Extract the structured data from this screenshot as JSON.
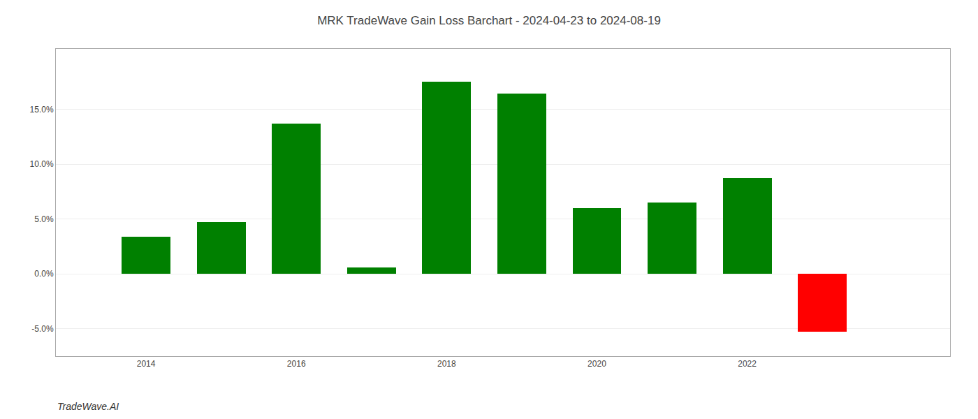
{
  "chart_data": {
    "type": "bar",
    "title": "MRK TradeWave Gain Loss Barchart - 2024-04-23 to 2024-08-19",
    "annotations": [
      "TradeWave.AI"
    ],
    "x": [
      2014,
      2015,
      2016,
      2017,
      2018,
      2019,
      2020,
      2021,
      2022,
      2023
    ],
    "values": [
      0.034,
      0.047,
      0.137,
      0.006,
      0.175,
      0.164,
      0.06,
      0.065,
      0.087,
      -0.053
    ],
    "colors": [
      "#008000",
      "#008000",
      "#008000",
      "#008000",
      "#008000",
      "#008000",
      "#008000",
      "#008000",
      "#008000",
      "#ff0000"
    ],
    "xlim": [
      2012.8,
      2024.7
    ],
    "xticks": [
      2014,
      2016,
      2018,
      2020,
      2022
    ],
    "ylim": [
      -0.075,
      0.205
    ],
    "yticks": [
      {
        "value": -0.05,
        "label": "-5.0%"
      },
      {
        "value": 0.0,
        "label": "0.0%"
      },
      {
        "value": 0.05,
        "label": "5.0%"
      },
      {
        "value": 0.1,
        "label": "10.0%"
      },
      {
        "value": 0.15,
        "label": "15.0%"
      }
    ],
    "grid": true
  }
}
